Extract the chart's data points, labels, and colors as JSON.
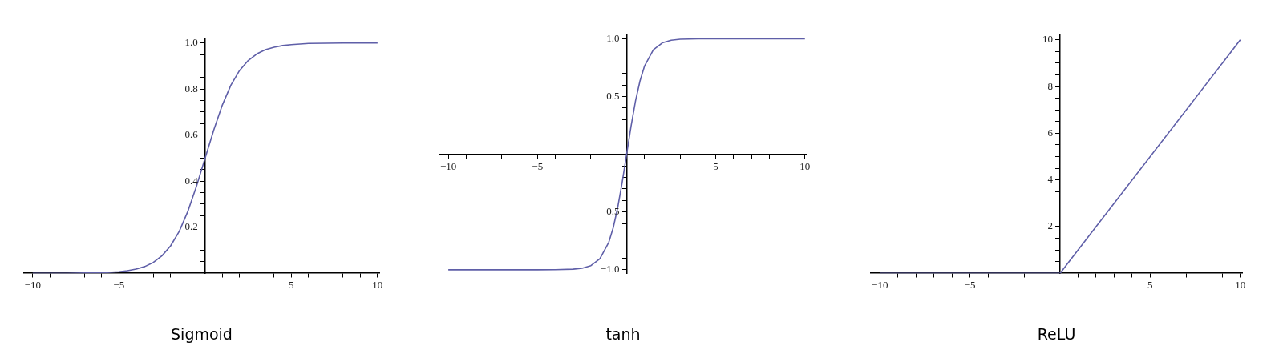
{
  "chart_data": [
    {
      "type": "line",
      "title": "Sigmoid",
      "grid": false,
      "marker": "none",
      "line_style": "solid",
      "x": [
        -10,
        -9,
        -8,
        -7,
        -6,
        -5,
        -4.5,
        -4,
        -3.5,
        -3,
        -2.5,
        -2,
        -1.5,
        -1,
        -0.5,
        0,
        0.5,
        1,
        1.5,
        2,
        2.5,
        3,
        3.5,
        4,
        4.5,
        5,
        6,
        7,
        8,
        9,
        10
      ],
      "series": [
        {
          "color": "#5f5fa8",
          "values": [
            0,
            0,
            0,
            0.001,
            0.002,
            0.007,
            0.011,
            0.018,
            0.029,
            0.047,
            0.076,
            0.119,
            0.182,
            0.269,
            0.378,
            0.5,
            0.622,
            0.731,
            0.818,
            0.881,
            0.924,
            0.953,
            0.971,
            0.982,
            0.989,
            0.993,
            0.998,
            0.999,
            1,
            1,
            1
          ]
        }
      ],
      "xlim": [
        -10.5,
        10.1
      ],
      "ylim": [
        0,
        1.02
      ],
      "xticks": [
        {
          "value": -10,
          "label": "−10"
        },
        {
          "value": -9,
          "label": null
        },
        {
          "value": -8,
          "label": null
        },
        {
          "value": -7,
          "label": null
        },
        {
          "value": -6,
          "label": null
        },
        {
          "value": -5,
          "label": "−5"
        },
        {
          "value": -4,
          "label": null
        },
        {
          "value": -3,
          "label": null
        },
        {
          "value": -2,
          "label": null
        },
        {
          "value": -1,
          "label": null
        },
        {
          "value": 1,
          "label": null
        },
        {
          "value": 2,
          "label": null
        },
        {
          "value": 3,
          "label": null
        },
        {
          "value": 4,
          "label": null
        },
        {
          "value": 5,
          "label": "5"
        },
        {
          "value": 6,
          "label": null
        },
        {
          "value": 7,
          "label": null
        },
        {
          "value": 8,
          "label": null
        },
        {
          "value": 9,
          "label": null
        },
        {
          "value": 10,
          "label": "10"
        }
      ],
      "yticks": [
        {
          "value": 0.05,
          "label": null
        },
        {
          "value": 0.1,
          "label": null
        },
        {
          "value": 0.15,
          "label": null
        },
        {
          "value": 0.2,
          "label": "0.2"
        },
        {
          "value": 0.25,
          "label": null
        },
        {
          "value": 0.3,
          "label": null
        },
        {
          "value": 0.35,
          "label": null
        },
        {
          "value": 0.4,
          "label": "0.4"
        },
        {
          "value": 0.45,
          "label": null
        },
        {
          "value": 0.5,
          "label": null
        },
        {
          "value": 0.55,
          "label": null
        },
        {
          "value": 0.6,
          "label": "0.6"
        },
        {
          "value": 0.65,
          "label": null
        },
        {
          "value": 0.7,
          "label": null
        },
        {
          "value": 0.75,
          "label": null
        },
        {
          "value": 0.8,
          "label": "0.8"
        },
        {
          "value": 0.85,
          "label": null
        },
        {
          "value": 0.9,
          "label": null
        },
        {
          "value": 0.95,
          "label": null
        },
        {
          "value": 1,
          "label": "1.0"
        }
      ]
    },
    {
      "type": "line",
      "title": "tanh",
      "grid": false,
      "marker": "none",
      "line_style": "solid",
      "x": [
        -10,
        -5,
        -4,
        -3,
        -2.5,
        -2,
        -1.5,
        -1,
        -0.75,
        -0.5,
        -0.25,
        0,
        0.25,
        0.5,
        0.75,
        1,
        1.5,
        2,
        2.5,
        3,
        4,
        5,
        10
      ],
      "series": [
        {
          "color": "#5f5fa8",
          "values": [
            -1,
            -1,
            -0.999,
            -0.995,
            -0.987,
            -0.964,
            -0.905,
            -0.762,
            -0.635,
            -0.462,
            -0.245,
            0,
            0.245,
            0.462,
            0.635,
            0.762,
            0.905,
            0.964,
            0.987,
            0.995,
            0.999,
            1,
            1
          ]
        }
      ],
      "xlim": [
        -10.5,
        10.1
      ],
      "ylim": [
        -1.03,
        1.03
      ],
      "xticks": [
        {
          "value": -10,
          "label": "−10"
        },
        {
          "value": -9,
          "label": null
        },
        {
          "value": -8,
          "label": null
        },
        {
          "value": -7,
          "label": null
        },
        {
          "value": -6,
          "label": null
        },
        {
          "value": -5,
          "label": "−5"
        },
        {
          "value": -4,
          "label": null
        },
        {
          "value": -3,
          "label": null
        },
        {
          "value": -2,
          "label": null
        },
        {
          "value": -1,
          "label": null
        },
        {
          "value": 1,
          "label": null
        },
        {
          "value": 2,
          "label": null
        },
        {
          "value": 3,
          "label": null
        },
        {
          "value": 4,
          "label": null
        },
        {
          "value": 5,
          "label": "5"
        },
        {
          "value": 6,
          "label": null
        },
        {
          "value": 7,
          "label": null
        },
        {
          "value": 8,
          "label": null
        },
        {
          "value": 9,
          "label": null
        },
        {
          "value": 10,
          "label": "10"
        }
      ],
      "yticks": [
        {
          "value": -1,
          "label": "−1.0"
        },
        {
          "value": -0.9,
          "label": null
        },
        {
          "value": -0.8,
          "label": null
        },
        {
          "value": -0.7,
          "label": null
        },
        {
          "value": -0.6,
          "label": null
        },
        {
          "value": -0.5,
          "label": "−0.5"
        },
        {
          "value": -0.4,
          "label": null
        },
        {
          "value": -0.3,
          "label": null
        },
        {
          "value": -0.2,
          "label": null
        },
        {
          "value": -0.1,
          "label": null
        },
        {
          "value": 0.1,
          "label": null
        },
        {
          "value": 0.2,
          "label": null
        },
        {
          "value": 0.3,
          "label": null
        },
        {
          "value": 0.4,
          "label": null
        },
        {
          "value": 0.5,
          "label": "0.5"
        },
        {
          "value": 0.6,
          "label": null
        },
        {
          "value": 0.7,
          "label": null
        },
        {
          "value": 0.8,
          "label": null
        },
        {
          "value": 0.9,
          "label": null
        },
        {
          "value": 1,
          "label": "1.0"
        }
      ]
    },
    {
      "type": "line",
      "title": "ReLU",
      "grid": false,
      "marker": "none",
      "line_style": "solid",
      "x": [
        -10,
        0,
        10
      ],
      "series": [
        {
          "color": "#5f5fa8",
          "values": [
            0,
            0,
            10
          ]
        }
      ],
      "xlim": [
        -10.5,
        10.1
      ],
      "ylim": [
        0,
        10.2
      ],
      "xticks": [
        {
          "value": -10,
          "label": "−10"
        },
        {
          "value": -9,
          "label": null
        },
        {
          "value": -8,
          "label": null
        },
        {
          "value": -7,
          "label": null
        },
        {
          "value": -6,
          "label": null
        },
        {
          "value": -5,
          "label": "−5"
        },
        {
          "value": -4,
          "label": null
        },
        {
          "value": -3,
          "label": null
        },
        {
          "value": -2,
          "label": null
        },
        {
          "value": -1,
          "label": null
        },
        {
          "value": 1,
          "label": null
        },
        {
          "value": 2,
          "label": null
        },
        {
          "value": 3,
          "label": null
        },
        {
          "value": 4,
          "label": null
        },
        {
          "value": 5,
          "label": "5"
        },
        {
          "value": 6,
          "label": null
        },
        {
          "value": 7,
          "label": null
        },
        {
          "value": 8,
          "label": null
        },
        {
          "value": 9,
          "label": null
        },
        {
          "value": 10,
          "label": "10"
        }
      ],
      "yticks": [
        {
          "value": 0.5,
          "label": null
        },
        {
          "value": 1,
          "label": null
        },
        {
          "value": 1.5,
          "label": null
        },
        {
          "value": 2,
          "label": "2"
        },
        {
          "value": 2.5,
          "label": null
        },
        {
          "value": 3,
          "label": null
        },
        {
          "value": 3.5,
          "label": null
        },
        {
          "value": 4,
          "label": "4"
        },
        {
          "value": 4.5,
          "label": null
        },
        {
          "value": 5,
          "label": null
        },
        {
          "value": 5.5,
          "label": null
        },
        {
          "value": 6,
          "label": "6"
        },
        {
          "value": 6.5,
          "label": null
        },
        {
          "value": 7,
          "label": null
        },
        {
          "value": 7.5,
          "label": null
        },
        {
          "value": 8,
          "label": "8"
        },
        {
          "value": 8.5,
          "label": null
        },
        {
          "value": 9,
          "label": null
        },
        {
          "value": 9.5,
          "label": null
        },
        {
          "value": 10,
          "label": "10"
        }
      ]
    }
  ]
}
